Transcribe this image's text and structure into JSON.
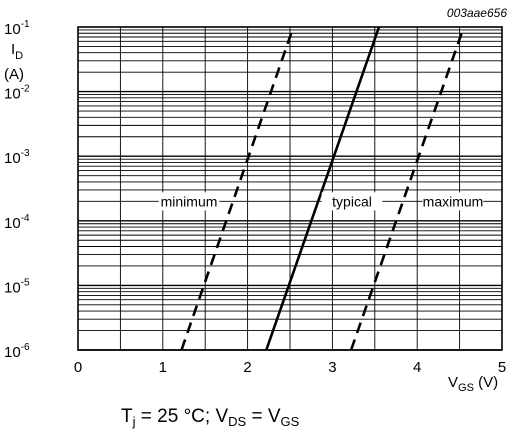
{
  "chart_data": {
    "type": "line",
    "figure_code": "003aae656",
    "ylabel": {
      "main": "I",
      "sub": "D",
      "unit": "(A)"
    },
    "xlabel": {
      "main": "V",
      "sub": "GS",
      "unit": " (V)"
    },
    "x_scale": "linear",
    "y_scale": "log",
    "xlim": [
      0,
      5
    ],
    "ylim": [
      1e-06,
      0.1
    ],
    "x_ticks": [
      "0",
      "1",
      "2",
      "3",
      "4",
      "5"
    ],
    "y_ticks": [
      {
        "base": "10",
        "exp": "-1",
        "value": 0.1
      },
      {
        "base": "10",
        "exp": "-2",
        "value": 0.01
      },
      {
        "base": "10",
        "exp": "-3",
        "value": 0.001
      },
      {
        "base": "10",
        "exp": "-4",
        "value": 0.0001
      },
      {
        "base": "10",
        "exp": "-5",
        "value": 1e-05
      },
      {
        "base": "10",
        "exp": "-6",
        "value": 1e-06
      }
    ],
    "grid": true,
    "series": [
      {
        "name": "minimum",
        "style": "dashed",
        "x": [
          1.22,
          2.54
        ],
        "y": [
          1e-06,
          0.1
        ]
      },
      {
        "name": "typical",
        "style": "solid",
        "x": [
          2.22,
          3.55
        ],
        "y": [
          1e-06,
          0.1
        ]
      },
      {
        "name": "maximum",
        "style": "dashed",
        "x": [
          3.22,
          4.55
        ],
        "y": [
          1e-06,
          0.1
        ]
      }
    ],
    "condition": {
      "t": "T",
      "t_sub": "j",
      "t_text": " = 25 °C; V",
      "vds_sub": "DS",
      "eq": " = V",
      "vgs_sub": "GS"
    }
  }
}
